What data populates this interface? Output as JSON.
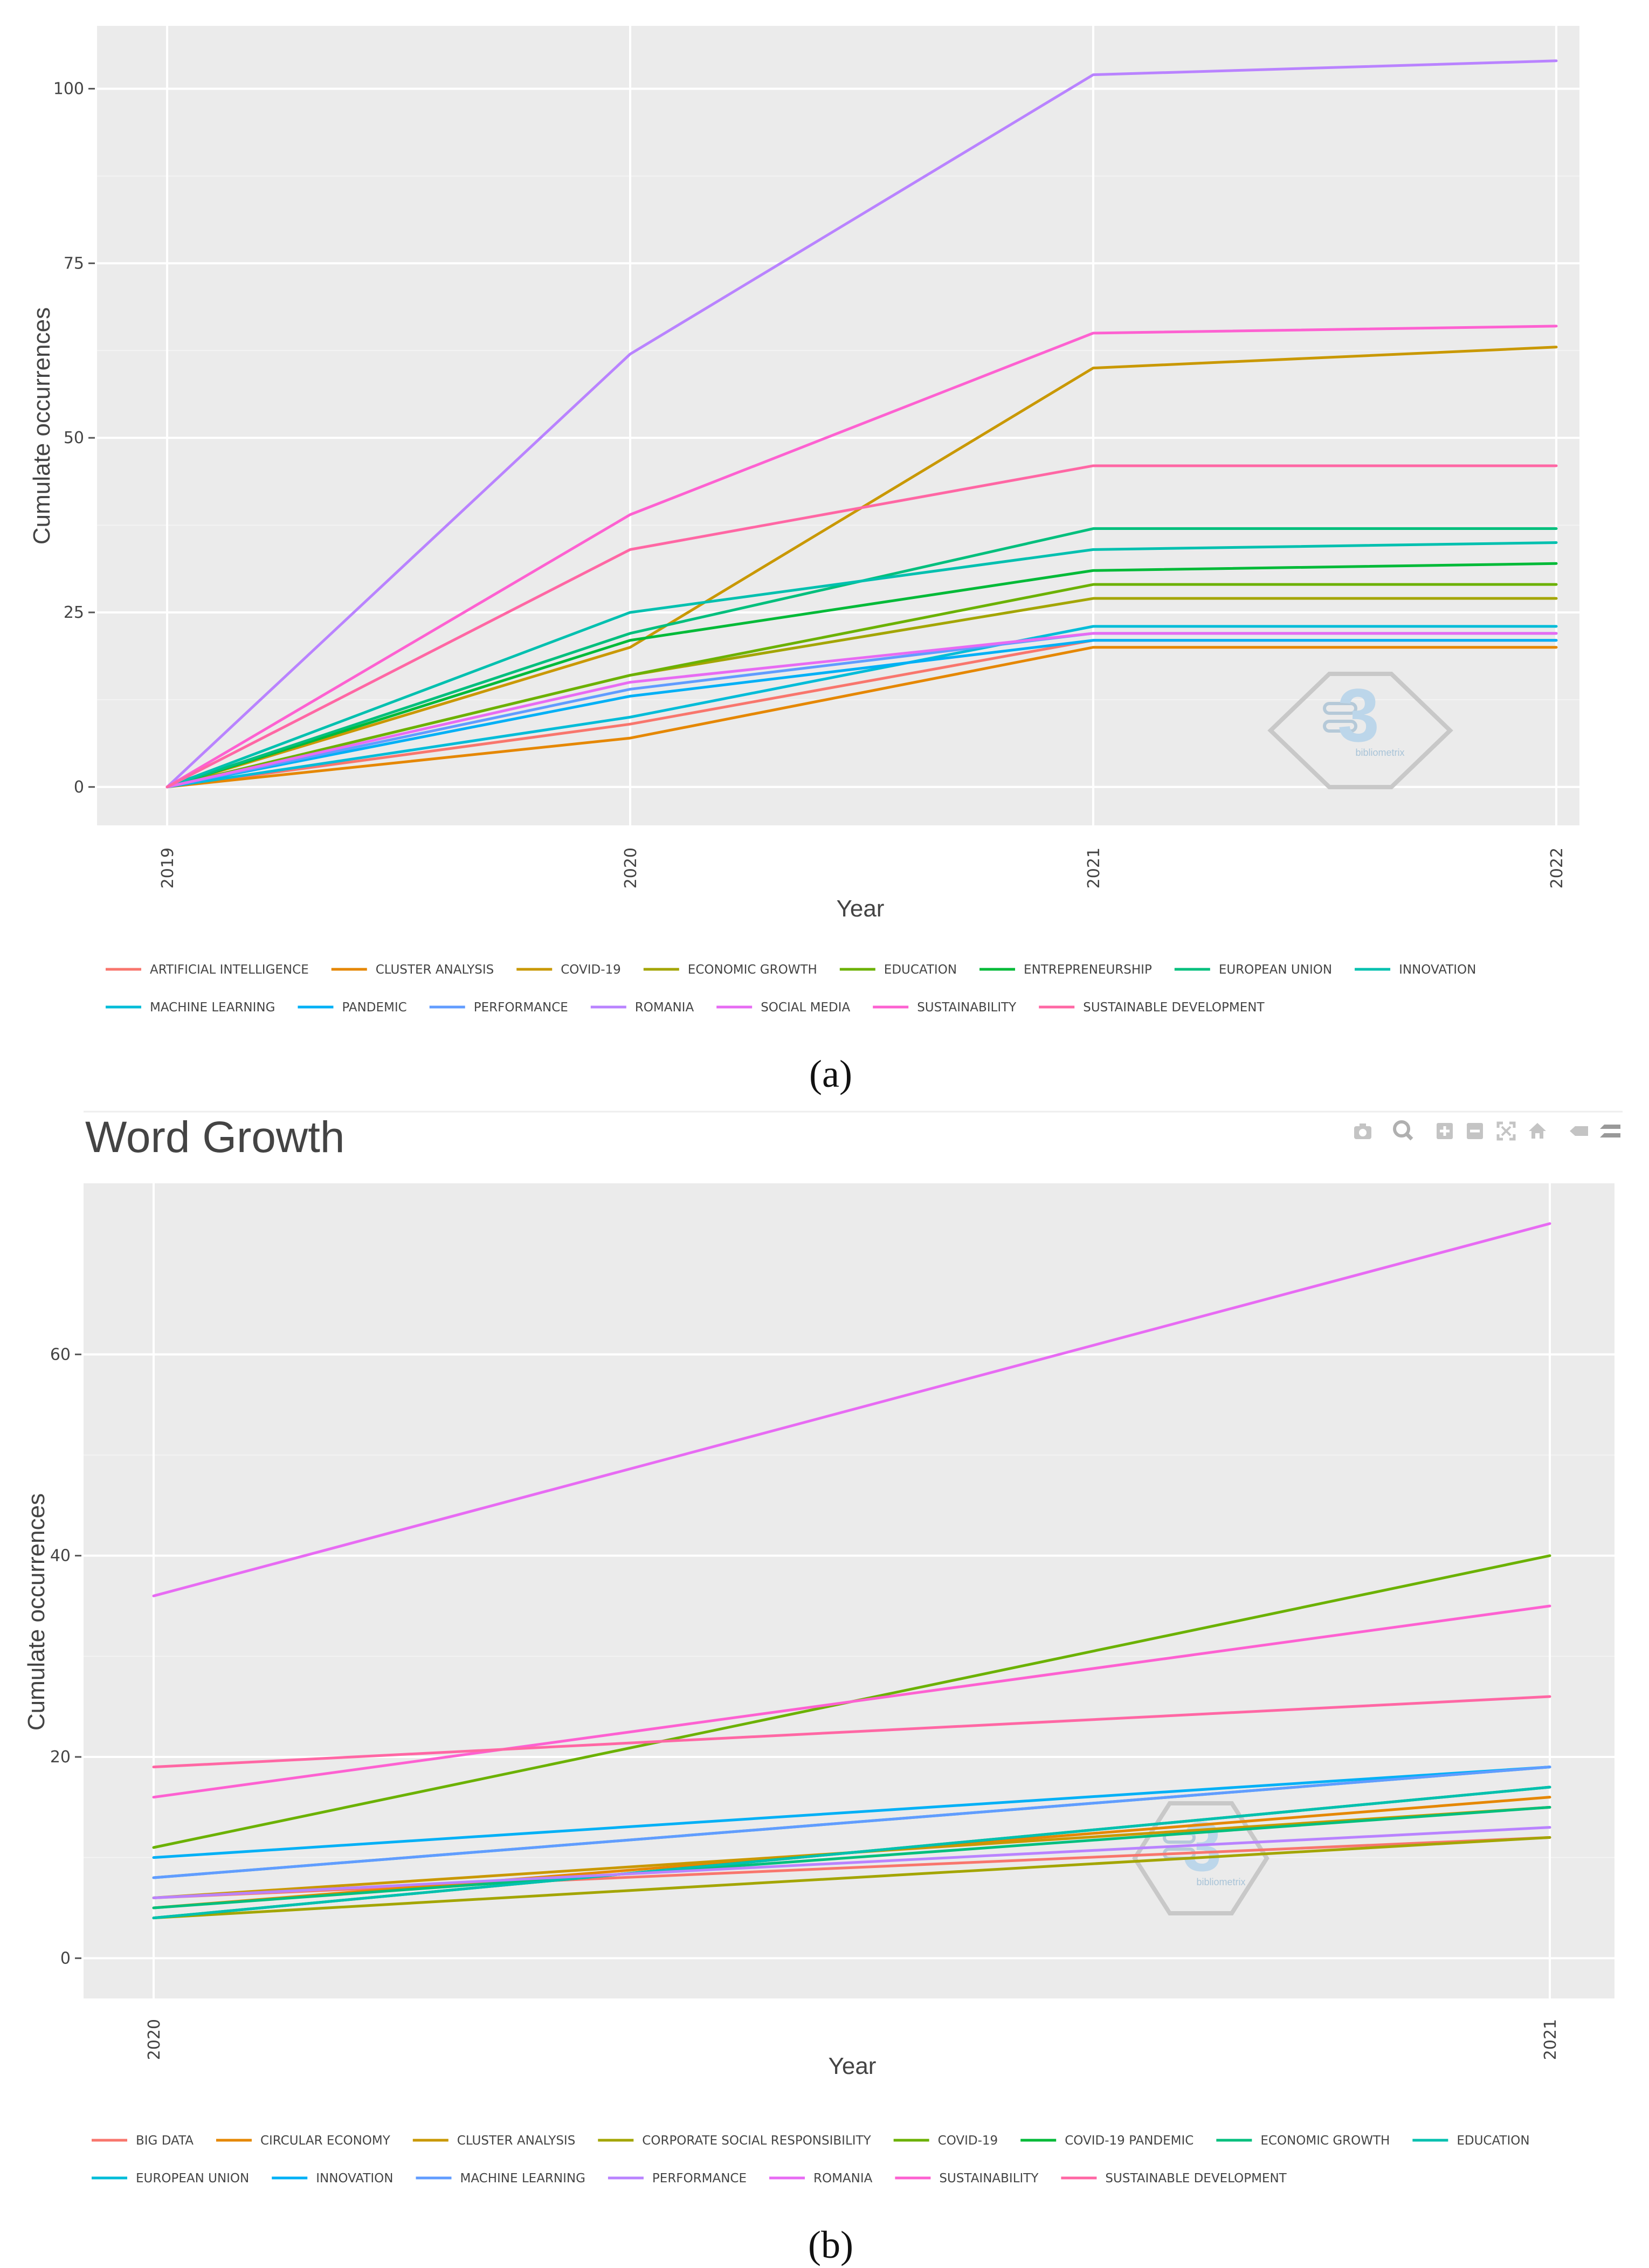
{
  "chart_data": [
    {
      "type": "line",
      "caption": "(a)",
      "title": "",
      "xlabel": "Year",
      "ylabel": "Cumulate occurrences",
      "categories": [
        "2019",
        "2020",
        "2021",
        "2022"
      ],
      "ylim": [
        -5.5,
        109
      ],
      "yticks": [
        0,
        25,
        50,
        75,
        100
      ],
      "grid": true,
      "legend_position": "bottom",
      "series": [
        {
          "name": "ARTIFICIAL INTELLIGENCE",
          "color": "#F8766D",
          "values": [
            0,
            9,
            21,
            21
          ]
        },
        {
          "name": "CLUSTER ANALYSIS",
          "color": "#E58700",
          "values": [
            0,
            7,
            20,
            20
          ]
        },
        {
          "name": "COVID-19",
          "color": "#C99800",
          "values": [
            0,
            20,
            60,
            63
          ]
        },
        {
          "name": "ECONOMIC GROWTH",
          "color": "#A3A500",
          "values": [
            0,
            16,
            27,
            27
          ]
        },
        {
          "name": "EDUCATION",
          "color": "#6BB100",
          "values": [
            0,
            16,
            29,
            29
          ]
        },
        {
          "name": "ENTREPRENEURSHIP",
          "color": "#00BA38",
          "values": [
            0,
            21,
            31,
            32
          ]
        },
        {
          "name": "EUROPEAN UNION",
          "color": "#00BF7D",
          "values": [
            0,
            22,
            37,
            37
          ]
        },
        {
          "name": "INNOVATION",
          "color": "#00C0AF",
          "values": [
            0,
            25,
            34,
            35
          ]
        },
        {
          "name": "MACHINE LEARNING",
          "color": "#00BCD8",
          "values": [
            0,
            10,
            23,
            23
          ]
        },
        {
          "name": "PANDEMIC",
          "color": "#00B0F6",
          "values": [
            0,
            13,
            21,
            21
          ]
        },
        {
          "name": "PERFORMANCE",
          "color": "#619CFF",
          "values": [
            0,
            14,
            22,
            22
          ]
        },
        {
          "name": "ROMANIA",
          "color": "#B983FF",
          "values": [
            0,
            62,
            102,
            104
          ]
        },
        {
          "name": "SOCIAL MEDIA",
          "color": "#E76BF3",
          "values": [
            0,
            15,
            22,
            22
          ]
        },
        {
          "name": "SUSTAINABILITY",
          "color": "#FD61D1",
          "values": [
            0,
            39,
            65,
            66
          ]
        },
        {
          "name": "SUSTAINABLE DEVELOPMENT",
          "color": "#FF67A4",
          "values": [
            0,
            34,
            46,
            46
          ]
        }
      ]
    },
    {
      "type": "line",
      "caption": "(b)",
      "title": "Word Growth",
      "xlabel": "Year",
      "ylabel": "Cumulate occurrences",
      "categories": [
        "2020",
        "2021"
      ],
      "ylim": [
        -4,
        77
      ],
      "yticks": [
        0,
        20,
        40,
        60
      ],
      "grid": true,
      "legend_position": "bottom",
      "series": [
        {
          "name": "BIG DATA",
          "color": "#F8766D",
          "values": [
            6,
            12
          ]
        },
        {
          "name": "CIRCULAR ECONOMY",
          "color": "#E58700",
          "values": [
            5,
            16
          ]
        },
        {
          "name": "CLUSTER ANALYSIS",
          "color": "#C99800",
          "values": [
            6,
            15
          ]
        },
        {
          "name": "CORPORATE SOCIAL RESPONSIBILITY",
          "color": "#A3A500",
          "values": [
            4,
            12
          ]
        },
        {
          "name": "COVID-19",
          "color": "#6BB100",
          "values": [
            11,
            40
          ]
        },
        {
          "name": "COVID-19 PANDEMIC",
          "color": "#00BA38",
          "values": [
            4,
            17
          ]
        },
        {
          "name": "ECONOMIC GROWTH",
          "color": "#00BF7D",
          "values": [
            5,
            15
          ]
        },
        {
          "name": "EDUCATION",
          "color": "#00C0AF",
          "values": [
            4,
            17
          ]
        },
        {
          "name": "EUROPEAN UNION",
          "color": "#00BCD8",
          "values": [
            8,
            19
          ]
        },
        {
          "name": "INNOVATION",
          "color": "#00B0F6",
          "values": [
            10,
            19
          ]
        },
        {
          "name": "MACHINE LEARNING",
          "color": "#619CFF",
          "values": [
            8,
            19
          ]
        },
        {
          "name": "PERFORMANCE",
          "color": "#B983FF",
          "values": [
            6,
            13
          ]
        },
        {
          "name": "ROMANIA",
          "color": "#E76BF3",
          "values": [
            36,
            73
          ]
        },
        {
          "name": "SUSTAINABILITY",
          "color": "#FD61D1",
          "values": [
            16,
            35
          ]
        },
        {
          "name": "SUSTAINABLE DEVELOPMENT",
          "color": "#FF67A4",
          "values": [
            19,
            26
          ]
        }
      ],
      "toolbar_icons": [
        "camera-icon",
        "zoom-icon",
        "zoom-in-icon",
        "zoom-out-icon",
        "autoscale-icon",
        "home-icon",
        "hover-closest-icon",
        "hover-compare-icon"
      ]
    }
  ],
  "watermark": {
    "text": "bibliometrix"
  }
}
